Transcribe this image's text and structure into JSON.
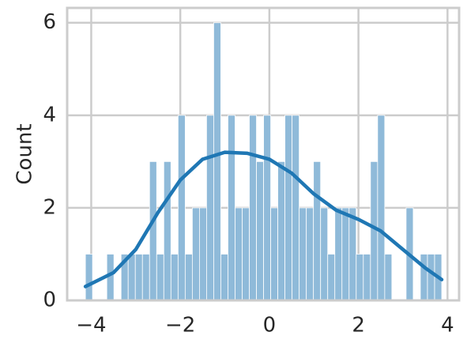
{
  "chart_data": {
    "type": "histogram",
    "ylabel": "Count",
    "bins": [
      -4.13,
      -3.97,
      -3.81,
      -3.65,
      -3.49,
      -3.33,
      -3.17,
      -3.01,
      -2.85,
      -2.69,
      -2.53,
      -2.37,
      -2.21,
      -2.05,
      -1.89,
      -1.73,
      -1.57,
      -1.41,
      -1.25,
      -1.09,
      -0.93,
      -0.77,
      -0.61,
      -0.45,
      -0.29,
      -0.13,
      0.03,
      0.19,
      0.35,
      0.51,
      0.67,
      0.83,
      0.99,
      1.15,
      1.31,
      1.47,
      1.63,
      1.79,
      1.95,
      2.11,
      2.27,
      2.43,
      2.59,
      2.75,
      2.91,
      3.07,
      3.23,
      3.39,
      3.55,
      3.71,
      3.87
    ],
    "counts": [
      1,
      0,
      0,
      1,
      0,
      1,
      1,
      1,
      1,
      3,
      1,
      3,
      1,
      4,
      1,
      2,
      2,
      4,
      6,
      1,
      4,
      2,
      2,
      4,
      3,
      4,
      2,
      3,
      4,
      4,
      2,
      2,
      3,
      2,
      1,
      2,
      2,
      2,
      1,
      1,
      3,
      4,
      1,
      0,
      0,
      2,
      0,
      1,
      1,
      1
    ],
    "color": "#8fbad9",
    "kde": {
      "color": "#1f77b4",
      "x": [
        -4.13,
        -3.5,
        -3,
        -2.5,
        -2,
        -1.5,
        -1,
        -0.5,
        0,
        0.5,
        1,
        1.5,
        2,
        2.5,
        3,
        3.5,
        3.87
      ],
      "values": [
        0.3,
        0.6,
        1.1,
        1.9,
        2.6,
        3.05,
        3.2,
        3.18,
        3.05,
        2.75,
        2.3,
        1.95,
        1.75,
        1.5,
        1.1,
        0.7,
        0.45
      ]
    },
    "xlim": [
      -4.54,
      4.26
    ],
    "ylim": [
      0,
      6.32
    ],
    "xticks": [
      {
        "value": -4,
        "label": "−4"
      },
      {
        "value": -2,
        "label": "−2"
      },
      0,
      2,
      4
    ],
    "yticks": [
      0,
      2,
      4,
      6
    ],
    "grid": true
  }
}
